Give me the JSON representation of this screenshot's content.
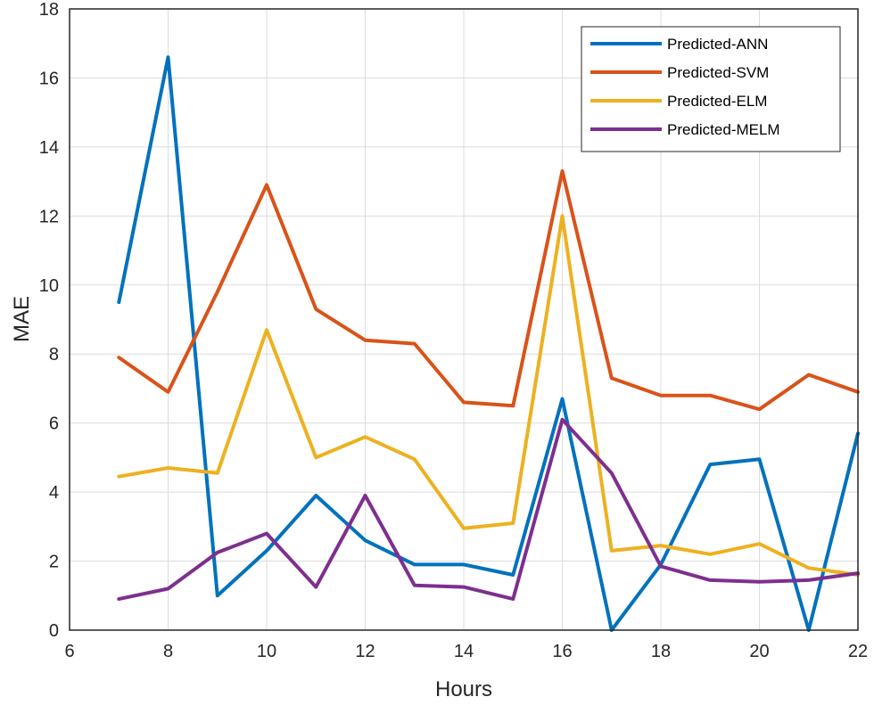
{
  "chart_data": {
    "type": "line",
    "title": "",
    "xlabel": "Hours",
    "ylabel": "MAE",
    "xlim": [
      6,
      22
    ],
    "ylim": [
      0,
      18
    ],
    "xticks": [
      6,
      8,
      10,
      12,
      14,
      16,
      18,
      20,
      22
    ],
    "yticks": [
      0,
      2,
      4,
      6,
      8,
      10,
      12,
      14,
      16,
      18
    ],
    "grid": true,
    "legend_position": "top-right",
    "x": [
      7,
      8,
      9,
      10,
      11,
      12,
      13,
      14,
      15,
      16,
      17,
      18,
      19,
      20,
      21,
      22
    ],
    "series": [
      {
        "name": "Predicted-ANN",
        "color": "#0072BD",
        "values": [
          9.5,
          16.6,
          1.0,
          2.3,
          3.9,
          2.6,
          1.9,
          1.9,
          1.6,
          6.7,
          0.0,
          1.9,
          4.8,
          4.95,
          0.0,
          5.7
        ]
      },
      {
        "name": "Predicted-SVM",
        "color": "#D95319",
        "values": [
          7.9,
          6.9,
          9.8,
          12.9,
          9.3,
          8.4,
          8.3,
          6.6,
          6.5,
          13.3,
          7.3,
          6.8,
          6.8,
          6.4,
          7.4,
          6.9
        ]
      },
      {
        "name": "Predicted-ELM",
        "color": "#EDB120",
        "values": [
          4.45,
          4.7,
          4.55,
          8.7,
          5.0,
          5.6,
          4.95,
          2.95,
          3.1,
          12.0,
          2.3,
          2.45,
          2.2,
          2.5,
          1.8,
          1.6
        ]
      },
      {
        "name": "Predicted-MELM",
        "color": "#7E2F8E",
        "values": [
          0.9,
          1.2,
          2.25,
          2.8,
          1.25,
          3.9,
          1.3,
          1.25,
          0.9,
          6.1,
          4.55,
          1.85,
          1.45,
          1.4,
          1.45,
          1.65
        ]
      }
    ]
  }
}
